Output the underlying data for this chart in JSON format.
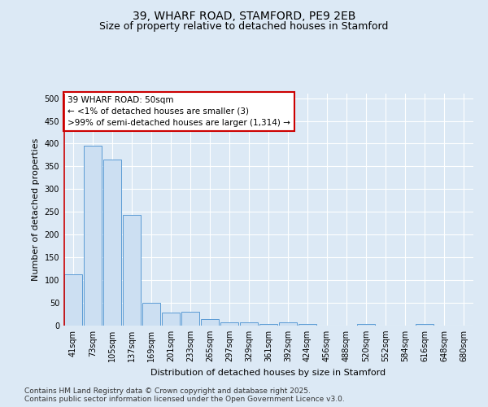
{
  "title_line1": "39, WHARF ROAD, STAMFORD, PE9 2EB",
  "title_line2": "Size of property relative to detached houses in Stamford",
  "xlabel": "Distribution of detached houses by size in Stamford",
  "ylabel": "Number of detached properties",
  "categories": [
    "41sqm",
    "73sqm",
    "105sqm",
    "137sqm",
    "169sqm",
    "201sqm",
    "233sqm",
    "265sqm",
    "297sqm",
    "329sqm",
    "361sqm",
    "392sqm",
    "424sqm",
    "456sqm",
    "488sqm",
    "520sqm",
    "552sqm",
    "584sqm",
    "616sqm",
    "648sqm",
    "680sqm"
  ],
  "values": [
    112,
    396,
    365,
    243,
    50,
    28,
    30,
    14,
    8,
    8,
    3,
    8,
    3,
    0,
    0,
    3,
    0,
    0,
    3,
    0,
    0
  ],
  "bar_color": "#ccdff2",
  "bar_edge_color": "#5b9bd5",
  "highlight_color": "#cc0000",
  "annotation_text": "39 WHARF ROAD: 50sqm\n← <1% of detached houses are smaller (3)\n>99% of semi-detached houses are larger (1,314) →",
  "annotation_box_color": "#ffffff",
  "annotation_box_edge_color": "#cc0000",
  "ylim": [
    0,
    510
  ],
  "yticks": [
    0,
    50,
    100,
    150,
    200,
    250,
    300,
    350,
    400,
    450,
    500
  ],
  "background_color": "#dce9f5",
  "plot_bg_color": "#dce9f5",
  "footer": "Contains HM Land Registry data © Crown copyright and database right 2025.\nContains public sector information licensed under the Open Government Licence v3.0.",
  "title_fontsize": 10,
  "subtitle_fontsize": 9,
  "axis_label_fontsize": 8,
  "tick_fontsize": 7,
  "annotation_fontsize": 7.5,
  "footer_fontsize": 6.5
}
